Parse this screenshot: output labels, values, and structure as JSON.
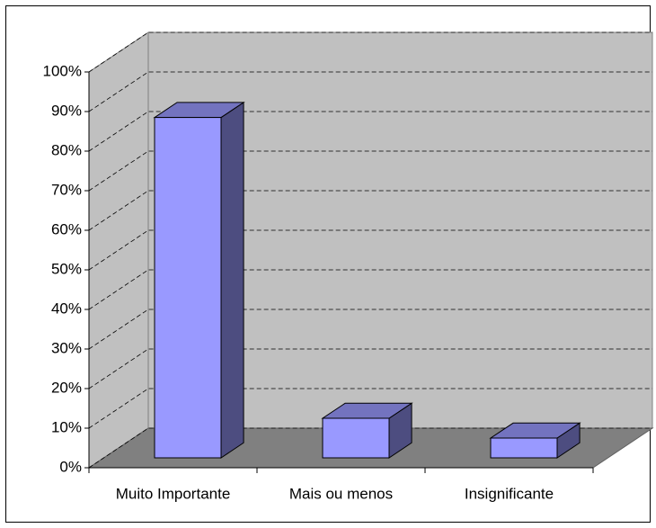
{
  "chart_data": {
    "type": "bar",
    "categories": [
      "Muito Importante",
      "Mais ou menos",
      "Insignificante"
    ],
    "values": [
      86,
      10,
      5
    ],
    "color": "#9999ff",
    "ylim": [
      0,
      100
    ],
    "yticks": [
      {
        "value": 0,
        "label": "0%"
      },
      {
        "value": 10,
        "label": "10%"
      },
      {
        "value": 20,
        "label": "20%"
      },
      {
        "value": 30,
        "label": "30%"
      },
      {
        "value": 40,
        "label": "40%"
      },
      {
        "value": 50,
        "label": "50%"
      },
      {
        "value": 60,
        "label": "60%"
      },
      {
        "value": 70,
        "label": "70%"
      },
      {
        "value": 80,
        "label": "80%"
      },
      {
        "value": 90,
        "label": "90%"
      },
      {
        "value": 100,
        "label": "100%"
      }
    ],
    "grid": true
  }
}
